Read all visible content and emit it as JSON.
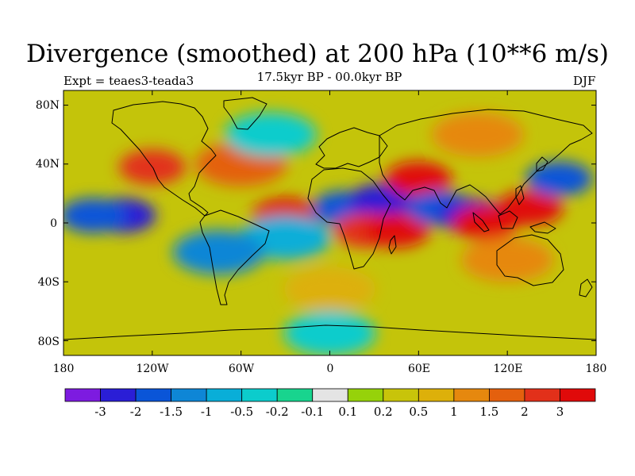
{
  "plot": {
    "title": "Divergence (smoothed) at 200 hPa (10**6 m/s)",
    "subtitle": "17.5kyr BP - 00.0kyr BP",
    "left_label": "Expt = teaes3-teada3",
    "right_label": "DJF"
  },
  "map": {
    "lat_ticks": [
      "80N",
      "40N",
      "0",
      "40S",
      "80S"
    ],
    "lon_ticks": [
      "180",
      "120W",
      "60W",
      "0",
      "60E",
      "120E",
      "180"
    ]
  },
  "colorbar": {
    "labels": [
      "-3",
      "-2",
      "-1.5",
      "-1",
      "-0.5",
      "-0.2",
      "-0.1",
      "0.1",
      "0.2",
      "0.5",
      "1",
      "1.5",
      "2",
      "3"
    ],
    "colors": [
      "#7d1be0",
      "#2a1ed6",
      "#0a55d8",
      "#0e86d6",
      "#09aed8",
      "#0ccccc",
      "#18d48e",
      "#e4e4e4",
      "#96d20a",
      "#c8c40a",
      "#ddb00a",
      "#e6880e",
      "#e4600e",
      "#e2301a",
      "#e00a0a"
    ]
  },
  "chart_data": {
    "type": "heatmap",
    "title": "Divergence (smoothed) at 200 hPa (10**6 m/s)",
    "subtitle": "17.5kyr BP - 00.0kyr BP",
    "season": "DJF",
    "experiment": "teaes3-teada3",
    "units": "10**6 m/s",
    "x_range": [
      -180,
      180
    ],
    "y_range": [
      -90,
      90
    ],
    "contour_levels": [
      -3,
      -2,
      -1.5,
      -1,
      -0.5,
      -0.2,
      -0.1,
      0.1,
      0.2,
      0.5,
      1,
      1.5,
      2,
      3
    ],
    "features": [
      {
        "lon": -140,
        "lat": 5,
        "value": -3
      },
      {
        "lon": -160,
        "lat": 5,
        "value": -2
      },
      {
        "lon": -120,
        "lat": 38,
        "value": 2
      },
      {
        "lon": -60,
        "lat": 40,
        "value": 1.5
      },
      {
        "lon": -30,
        "lat": 5,
        "value": 3
      },
      {
        "lon": -30,
        "lat": -10,
        "value": -1
      },
      {
        "lon": -75,
        "lat": -20,
        "value": -1.5
      },
      {
        "lon": 10,
        "lat": 10,
        "value": -2
      },
      {
        "lon": 35,
        "lat": 15,
        "value": -3
      },
      {
        "lon": 25,
        "lat": -5,
        "value": 2
      },
      {
        "lon": 45,
        "lat": -5,
        "value": 3
      },
      {
        "lon": 60,
        "lat": 30,
        "value": 3
      },
      {
        "lon": 75,
        "lat": 10,
        "value": -2
      },
      {
        "lon": 95,
        "lat": 5,
        "value": -3
      },
      {
        "lon": 105,
        "lat": 0,
        "value": 3
      },
      {
        "lon": 135,
        "lat": 10,
        "value": 3
      },
      {
        "lon": 155,
        "lat": 30,
        "value": -2
      },
      {
        "lon": 120,
        "lat": -25,
        "value": 1
      },
      {
        "lon": 0,
        "lat": -45,
        "value": 0.5
      },
      {
        "lon": 0,
        "lat": -75,
        "value": -0.5
      },
      {
        "lon": -40,
        "lat": 60,
        "value": -0.5
      },
      {
        "lon": 100,
        "lat": 60,
        "value": 1
      }
    ]
  }
}
